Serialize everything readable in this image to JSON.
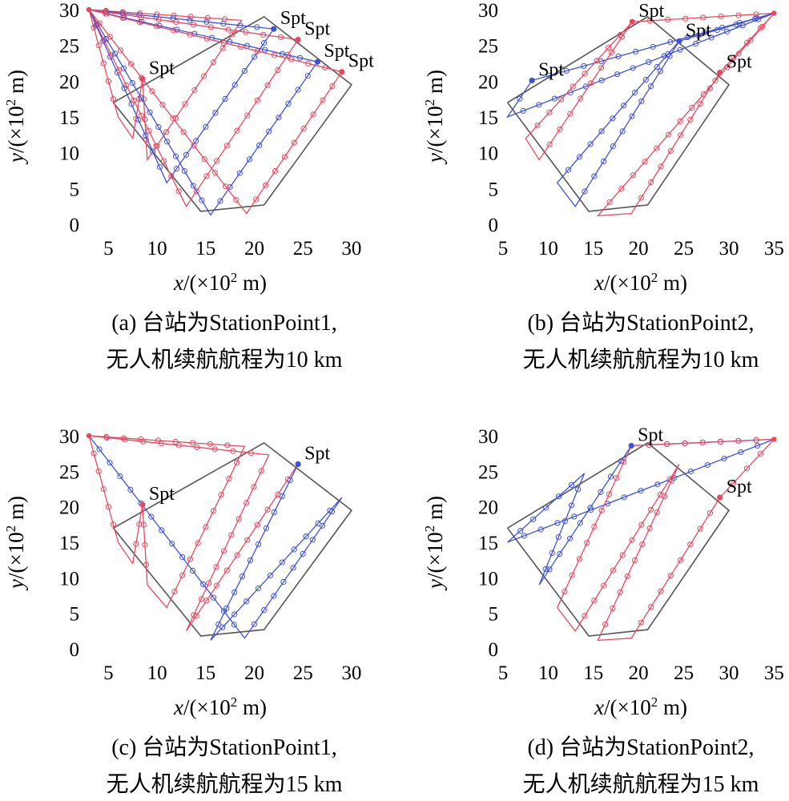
{
  "colors": {
    "red": "#e8485f",
    "blue": "#3f52d6",
    "boundary": "#555555"
  },
  "chart_data": [
    {
      "type": "line",
      "caption": [
        "(a) 台站为StationPoint1,",
        "无人机续航航程为10 km"
      ],
      "xlabel_var": "x",
      "xlabel_unit": "/(×10",
      "xlabel_exp": "2",
      "xlabel_tail": " m)",
      "ylabel_var": "y",
      "ylabel_unit": "/(×10",
      "ylabel_exp": "2",
      "ylabel_tail": " m)",
      "xlim": [
        2.5,
        30.5
      ],
      "ylim": [
        0,
        30
      ],
      "xticks": [
        5,
        10,
        15,
        20,
        25,
        30
      ],
      "yticks": [
        0,
        5,
        10,
        15,
        20,
        25,
        30
      ],
      "station": {
        "x": 3,
        "y": 30,
        "color": "red"
      },
      "boundary": [
        [
          5.5,
          17
        ],
        [
          14.5,
          1.8
        ],
        [
          21,
          2.7
        ],
        [
          30,
          19.5
        ],
        [
          21,
          29
        ],
        [
          5.5,
          17
        ]
      ],
      "spt_points": [
        {
          "x": 8.5,
          "y": 20.3,
          "label": "Spt",
          "color": "red"
        },
        {
          "x": 22,
          "y": 27.3,
          "label": "Spt",
          "color": "blue"
        },
        {
          "x": 24.5,
          "y": 25.8,
          "label": "Spt",
          "color": "red"
        },
        {
          "x": 26.5,
          "y": 22.7,
          "label": "Spt",
          "color": "blue"
        },
        {
          "x": 29,
          "y": 21.3,
          "label": "Spt",
          "color": "red"
        }
      ],
      "series": [
        {
          "color": "red",
          "points": [
            [
              3,
              30
            ],
            [
              6,
              15
            ],
            [
              7.5,
              12
            ],
            [
              8.5,
              20.3
            ]
          ]
        },
        {
          "color": "red",
          "points": [
            [
              8.5,
              20.3
            ],
            [
              9,
              9
            ],
            [
              18.7,
              28.5
            ],
            [
              3,
              30
            ]
          ]
        },
        {
          "color": "blue",
          "points": [
            [
              3,
              30
            ],
            [
              11,
              5.8
            ],
            [
              22,
              27.3
            ],
            [
              3,
              30
            ]
          ]
        },
        {
          "color": "red",
          "points": [
            [
              3,
              30
            ],
            [
              13,
              2.5
            ],
            [
              24.5,
              25.8
            ],
            [
              3,
              30
            ]
          ]
        },
        {
          "color": "blue",
          "points": [
            [
              3,
              30
            ],
            [
              15.5,
              1.3
            ],
            [
              26.5,
              22.7
            ],
            [
              3,
              30
            ]
          ]
        },
        {
          "color": "red",
          "points": [
            [
              3,
              30
            ],
            [
              19.2,
              1.5
            ],
            [
              29,
              21.3
            ],
            [
              3,
              30
            ]
          ]
        }
      ]
    },
    {
      "type": "line",
      "caption": [
        "(b) 台站为StationPoint2,",
        "无人机续航航程为10 km"
      ],
      "xlabel_var": "x",
      "xlabel_unit": "/(×10",
      "xlabel_exp": "2",
      "xlabel_tail": " m)",
      "ylabel_var": "y",
      "ylabel_unit": "/(×10",
      "ylabel_exp": "2",
      "ylabel_tail": " m)",
      "xlim": [
        5,
        35.5
      ],
      "ylim": [
        0,
        30
      ],
      "xticks": [
        5,
        10,
        15,
        20,
        25,
        30,
        35
      ],
      "yticks": [
        0,
        5,
        10,
        15,
        20,
        25,
        30
      ],
      "station": {
        "x": 35,
        "y": 29.5,
        "color": "red"
      },
      "boundary": [
        [
          5.5,
          17
        ],
        [
          14.5,
          1.8
        ],
        [
          21,
          2.7
        ],
        [
          30,
          19.5
        ],
        [
          21,
          29
        ],
        [
          5.5,
          17
        ]
      ],
      "spt_points": [
        {
          "x": 8.2,
          "y": 20.1,
          "label": "Spt",
          "color": "blue"
        },
        {
          "x": 19.3,
          "y": 28.3,
          "label": "Spt",
          "color": "red"
        },
        {
          "x": 24.5,
          "y": 25.6,
          "label": "Spt",
          "color": "blue"
        },
        {
          "x": 29,
          "y": 21.2,
          "label": "Spt",
          "color": "red"
        }
      ],
      "series": [
        {
          "color": "blue",
          "points": [
            [
              35,
              29.5
            ],
            [
              5.5,
              15
            ],
            [
              8.2,
              20.1
            ],
            [
              35,
              29.5
            ]
          ]
        },
        {
          "color": "red",
          "points": [
            [
              35,
              29.5
            ],
            [
              19.3,
              28.3
            ],
            [
              7.5,
              12
            ],
            [
              9,
              9
            ],
            [
              19.3,
              28.3
            ]
          ]
        },
        {
          "color": "blue",
          "points": [
            [
              35,
              29.5
            ],
            [
              24.5,
              25.6
            ],
            [
              11,
              5.8
            ],
            [
              13,
              2.5
            ],
            [
              24.5,
              25.6
            ]
          ]
        },
        {
          "color": "red",
          "points": [
            [
              35,
              29.5
            ],
            [
              15.5,
              1.2
            ],
            [
              19.2,
              1.5
            ],
            [
              29,
              21.2
            ],
            [
              35,
              29.5
            ]
          ]
        }
      ]
    },
    {
      "type": "line",
      "caption": [
        "(c) 台站为StationPoint1,",
        "无人机续航航程为15 km"
      ],
      "xlabel_var": "x",
      "xlabel_unit": "/(×10",
      "xlabel_exp": "2",
      "xlabel_tail": " m)",
      "ylabel_var": "y",
      "ylabel_unit": "/(×10",
      "ylabel_exp": "2",
      "ylabel_tail": " m)",
      "xlim": [
        2.5,
        30.5
      ],
      "ylim": [
        0,
        30
      ],
      "xticks": [
        5,
        10,
        15,
        20,
        25,
        30
      ],
      "yticks": [
        0,
        5,
        10,
        15,
        20,
        25,
        30
      ],
      "station": {
        "x": 3,
        "y": 30,
        "color": "red"
      },
      "boundary": [
        [
          5.5,
          17
        ],
        [
          14.5,
          1.8
        ],
        [
          21,
          2.7
        ],
        [
          30,
          19.5
        ],
        [
          21,
          29
        ],
        [
          5.5,
          17
        ]
      ],
      "spt_points": [
        {
          "x": 8.5,
          "y": 20.3,
          "label": "Spt",
          "color": "red"
        },
        {
          "x": 24.5,
          "y": 26,
          "label": "Spt",
          "color": "blue"
        }
      ],
      "series": [
        {
          "color": "red",
          "points": [
            [
              3,
              30
            ],
            [
              6,
              15
            ],
            [
              7.5,
              12
            ],
            [
              8.5,
              20.3
            ],
            [
              9,
              9
            ],
            [
              11,
              5.8
            ],
            [
              19,
              28.5
            ],
            [
              3,
              30
            ]
          ]
        },
        {
          "color": "red",
          "points": [
            [
              3,
              30
            ],
            [
              21.5,
              27.3
            ],
            [
              13,
              2.5
            ],
            [
              24.5,
              26
            ]
          ]
        },
        {
          "color": "blue",
          "points": [
            [
              3,
              30
            ],
            [
              19,
              1.5
            ],
            [
              29,
              21.3
            ],
            [
              15.5,
              1.2
            ],
            [
              24.5,
              26
            ]
          ]
        }
      ]
    },
    {
      "type": "line",
      "caption": [
        "(d) 台站为StationPoint2,",
        "无人机续航航程为15 km"
      ],
      "xlabel_var": "x",
      "xlabel_unit": "/(×10",
      "xlabel_exp": "2",
      "xlabel_tail": " m)",
      "ylabel_var": "y",
      "ylabel_unit": "/(×10",
      "ylabel_exp": "2",
      "ylabel_tail": " m)",
      "xlim": [
        5,
        35.5
      ],
      "ylim": [
        0,
        30
      ],
      "xticks": [
        5,
        10,
        15,
        20,
        25,
        30,
        35
      ],
      "yticks": [
        0,
        5,
        10,
        15,
        20,
        25,
        30
      ],
      "station": {
        "x": 35,
        "y": 29.5,
        "color": "red"
      },
      "boundary": [
        [
          5.5,
          17
        ],
        [
          14.5,
          1.8
        ],
        [
          21,
          2.7
        ],
        [
          30,
          19.5
        ],
        [
          21,
          29
        ],
        [
          5.5,
          17
        ]
      ],
      "spt_points": [
        {
          "x": 19.2,
          "y": 28.6,
          "label": "Spt",
          "color": "blue"
        },
        {
          "x": 29,
          "y": 21.3,
          "label": "Spt",
          "color": "red"
        }
      ],
      "series": [
        {
          "color": "blue",
          "points": [
            [
              35,
              29.5
            ],
            [
              5.5,
              15
            ],
            [
              14,
              24.7
            ],
            [
              9,
              9
            ],
            [
              19.2,
              28.6
            ],
            [
              35,
              29.5
            ]
          ]
        },
        {
          "color": "red",
          "points": [
            [
              35,
              29.5
            ],
            [
              19.2,
              28.6
            ],
            [
              11,
              5.8
            ],
            [
              13,
              2.5
            ],
            [
              24.5,
              26
            ],
            [
              15.5,
              1.2
            ],
            [
              19.2,
              1.5
            ],
            [
              29,
              21.3
            ],
            [
              35,
              29.5
            ]
          ]
        }
      ]
    }
  ]
}
